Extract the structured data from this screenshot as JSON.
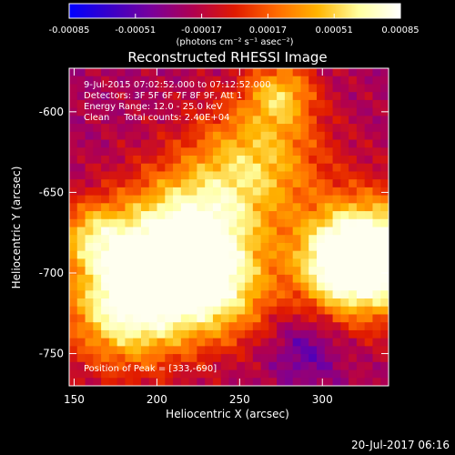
{
  "colorbar": {
    "tick_labels": [
      "-0.00085",
      "-0.00051",
      "-0.00017",
      "0.00017",
      "0.00051",
      "0.00085"
    ],
    "tick_values": [
      -0.00085,
      -0.00051,
      -0.00017,
      0.00017,
      0.00051,
      0.00085
    ],
    "range": [
      -0.00085,
      0.00085
    ],
    "units": "(photons cm⁻² s⁻¹ asec⁻²)",
    "colors": [
      "#0000ff",
      "#3a00c8",
      "#7a009a",
      "#b00050",
      "#e01a00",
      "#ff6a00",
      "#ffb400",
      "#ffffa0",
      "#ffffff"
    ]
  },
  "chart_data": {
    "type": "heatmap",
    "title": "Reconstructed RHESSI Image",
    "xlabel": "Heliocentric X (arcsec)",
    "ylabel": "Heliocentric Y (arcsec)",
    "xlim": [
      147,
      340
    ],
    "ylim": [
      -770,
      -573
    ],
    "x_ticks": [
      150,
      200,
      250,
      300
    ],
    "y_ticks": [
      -600,
      -650,
      -700,
      -750
    ],
    "annotations": [
      "9-Jul-2015 07:02:52.000 to 07:12:52.000",
      "Detectors: 3F 5F 6F 7F 8F 9F, Att 1",
      "Energy Range: 12.0 - 25.0 keV",
      "Clean     Total counts: 2.40E+04"
    ],
    "peak_label": "Position of Peak = [333,-690]",
    "peak": [
      333,
      -690
    ],
    "sources": [
      {
        "x": 333,
        "y": -690,
        "r": 26,
        "amp": 1.0
      },
      {
        "x": 312,
        "y": -693,
        "r": 20,
        "amp": 0.75
      },
      {
        "x": 195,
        "y": -700,
        "r": 30,
        "amp": 0.78
      },
      {
        "x": 225,
        "y": -672,
        "r": 28,
        "amp": 0.72
      },
      {
        "x": 262,
        "y": -628,
        "r": 28,
        "amp": 0.62
      },
      {
        "x": 275,
        "y": -588,
        "r": 14,
        "amp": 0.52
      },
      {
        "x": 180,
        "y": -725,
        "r": 26,
        "amp": 0.55
      },
      {
        "x": 160,
        "y": -676,
        "r": 14,
        "amp": 0.45
      },
      {
        "x": 240,
        "y": -712,
        "r": 22,
        "amp": 0.55
      }
    ],
    "minimum": [
      290,
      -748
    ]
  },
  "footer": {
    "timestamp": "20-Jul-2017 06:16"
  }
}
